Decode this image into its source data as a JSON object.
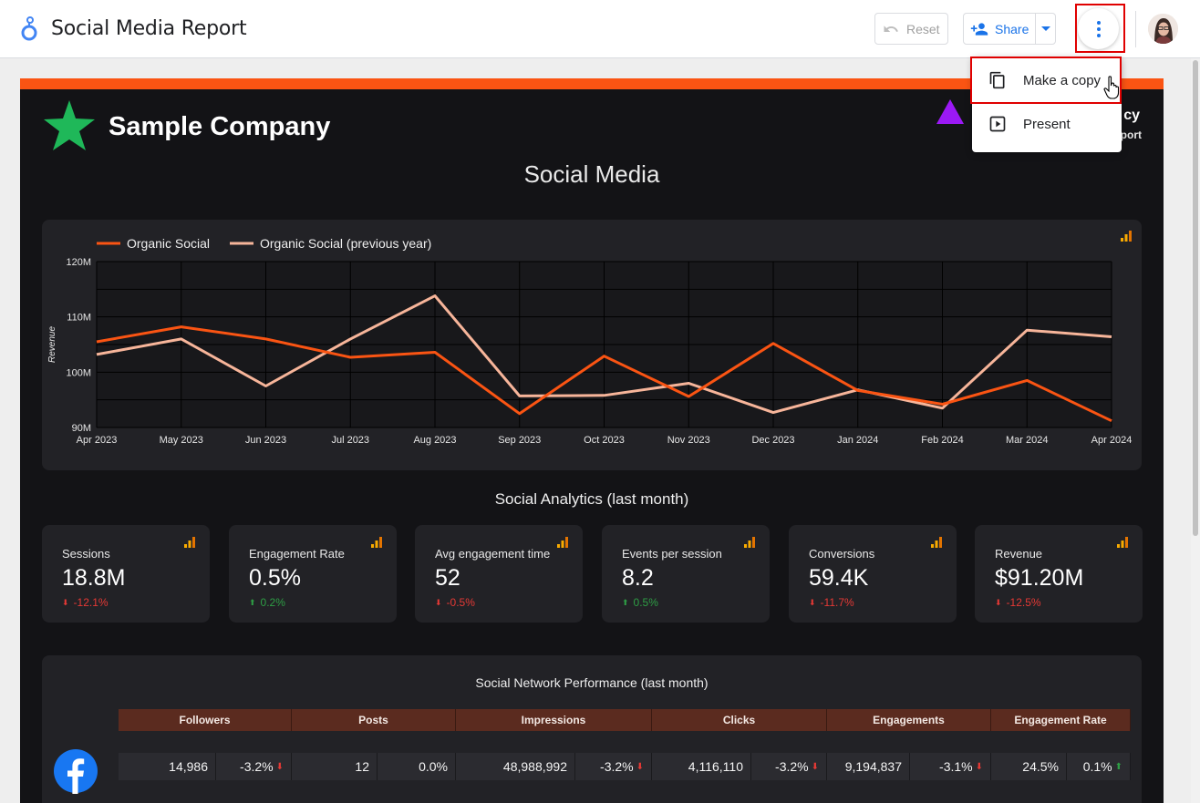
{
  "app": {
    "title": "Social Media Report"
  },
  "toolbar": {
    "reset_label": "Reset",
    "share_label": "Share"
  },
  "menu": {
    "items": [
      {
        "label": "Make a copy",
        "icon": "copy-icon"
      },
      {
        "label": "Present",
        "icon": "present-icon"
      }
    ]
  },
  "report": {
    "company": "Sample Company",
    "agency_name": "cy",
    "agency_sub": "port",
    "title": "Social Media",
    "analytics_title": "Social Analytics (last month)",
    "perf_title": "Social Network Performance (last month)"
  },
  "kpis": [
    {
      "label": "Sessions",
      "value": "18.8M",
      "delta": "-12.1%",
      "direction": "down"
    },
    {
      "label": "Engagement Rate",
      "value": "0.5%",
      "delta": "0.2%",
      "direction": "up"
    },
    {
      "label": "Avg engagement time",
      "value": "52",
      "delta": "-0.5%",
      "direction": "down"
    },
    {
      "label": "Events per session",
      "value": "8.2",
      "delta": "0.5%",
      "direction": "up"
    },
    {
      "label": "Conversions",
      "value": "59.4K",
      "delta": "-11.7%",
      "direction": "down"
    },
    {
      "label": "Revenue",
      "value": "$91.20M",
      "delta": "-12.5%",
      "direction": "down"
    }
  ],
  "perf_table": {
    "columns": [
      "Followers",
      "Posts",
      "Impressions",
      "Clicks",
      "Engagements",
      "Engagement Rate"
    ],
    "row": {
      "network_icon": "facebook-icon",
      "cells": [
        {
          "value": "14,986",
          "delta": "-3.2%",
          "direction": "down"
        },
        {
          "value": "12",
          "delta": "0.0%",
          "direction": "none"
        },
        {
          "value": "48,988,992",
          "delta": "-3.2%",
          "direction": "down"
        },
        {
          "value": "4,116,110",
          "delta": "-3.2%",
          "direction": "down"
        },
        {
          "value": "9,194,837",
          "delta": "-3.1%",
          "direction": "down"
        },
        {
          "value": "24.5%",
          "delta": "0.1%",
          "direction": "up"
        }
      ]
    }
  },
  "colors": {
    "accent": "#fa5413",
    "series_current": "#fa5413",
    "series_previous": "#f7b59a",
    "negative": "#e53935",
    "positive": "#2e9e45",
    "link": "#1a73e8"
  },
  "chart_data": {
    "type": "line",
    "x": [
      "Apr 2023",
      "May 2023",
      "Jun 2023",
      "Jul 2023",
      "Aug 2023",
      "Sep 2023",
      "Oct 2023",
      "Nov 2023",
      "Dec 2023",
      "Jan 2024",
      "Feb 2024",
      "Mar 2024",
      "Apr 2024"
    ],
    "series": [
      {
        "name": "Organic Social",
        "values": [
          105.5,
          108.2,
          106.0,
          102.7,
          103.6,
          92.5,
          102.9,
          95.6,
          105.2,
          96.7,
          94.2,
          98.5,
          91.2
        ]
      },
      {
        "name": "Organic Social (previous year)",
        "values": [
          103.2,
          106.0,
          97.5,
          106.0,
          113.8,
          95.7,
          95.8,
          98.0,
          92.7,
          96.8,
          93.5,
          107.6,
          106.4
        ]
      }
    ],
    "ylabel": "Revenue",
    "ylim": [
      90,
      120
    ],
    "yticks": [
      "90M",
      "100M",
      "110M",
      "120M"
    ],
    "ytick_values": [
      90,
      100,
      110,
      120
    ],
    "grid": true,
    "legend": "top-left"
  }
}
